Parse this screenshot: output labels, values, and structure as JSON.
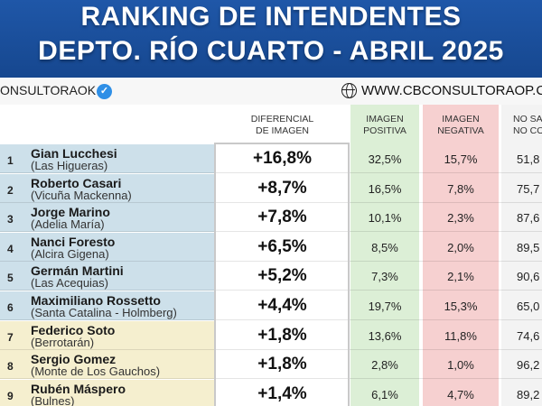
{
  "title": {
    "line1": "RANKING DE INTENDENTES",
    "line2": "DEPTO. RÍO CUARTO - ABRIL 2025"
  },
  "brand": {
    "handle": "ONSULTORAOK",
    "verified_icon": "verified-check-icon",
    "globe_icon": "globe-icon",
    "website": "WWW.CBCONSULTORAOP.C"
  },
  "columns": {
    "diferencial": "DIFERENCIAL\nDE IMAGEN",
    "positiva": "IMAGEN\nPOSITIVA",
    "negativa": "IMAGEN\nNEGATIVA",
    "no_sabe": "NO SA\nNO CO"
  },
  "colors": {
    "banner": "#1f57a8",
    "rank_blue": "#cde0ea",
    "rank_yellow": "#f5efcf",
    "positive": "#dcefd6",
    "negative": "#f6d0d0",
    "no_sabe": "#f3f3f3"
  },
  "rows": [
    {
      "rank": "1",
      "name": "Gian Lucchesi",
      "location": "(Las Higueras)",
      "diferencial": "+16,8%",
      "positiva": "32,5%",
      "negativa": "15,7%",
      "no_sabe": "51,8"
    },
    {
      "rank": "2",
      "name": "Roberto Casari",
      "location": "(Vicuña Mackenna)",
      "diferencial": "+8,7%",
      "positiva": "16,5%",
      "negativa": "7,8%",
      "no_sabe": "75,7"
    },
    {
      "rank": "3",
      "name": "Jorge Marino",
      "location": "(Adelia María)",
      "diferencial": "+7,8%",
      "positiva": "10,1%",
      "negativa": "2,3%",
      "no_sabe": "87,6"
    },
    {
      "rank": "4",
      "name": "Nanci Foresto",
      "location": "(Alcira Gigena)",
      "diferencial": "+6,5%",
      "positiva": "8,5%",
      "negativa": "2,0%",
      "no_sabe": "89,5"
    },
    {
      "rank": "5",
      "name": "Germán Martini",
      "location": "(Las Acequias)",
      "diferencial": "+5,2%",
      "positiva": "7,3%",
      "negativa": "2,1%",
      "no_sabe": "90,6"
    },
    {
      "rank": "6",
      "name": "Maximiliano Rossetto",
      "location": "(Santa Catalina - Holmberg)",
      "diferencial": "+4,4%",
      "positiva": "19,7%",
      "negativa": "15,3%",
      "no_sabe": "65,0"
    },
    {
      "rank": "7",
      "name": "Federico Soto",
      "location": "(Berrotarán)",
      "diferencial": "+1,8%",
      "positiva": "13,6%",
      "negativa": "11,8%",
      "no_sabe": "74,6"
    },
    {
      "rank": "8",
      "name": "Sergio Gomez",
      "location": "(Monte de Los Gauchos)",
      "diferencial": "+1,8%",
      "positiva": "2,8%",
      "negativa": "1,0%",
      "no_sabe": "96,2"
    },
    {
      "rank": "9",
      "name": "Rubén Máspero",
      "location": "(Bulnes)",
      "diferencial": "+1,4%",
      "positiva": "6,1%",
      "negativa": "4,7%",
      "no_sabe": "89,2"
    }
  ]
}
